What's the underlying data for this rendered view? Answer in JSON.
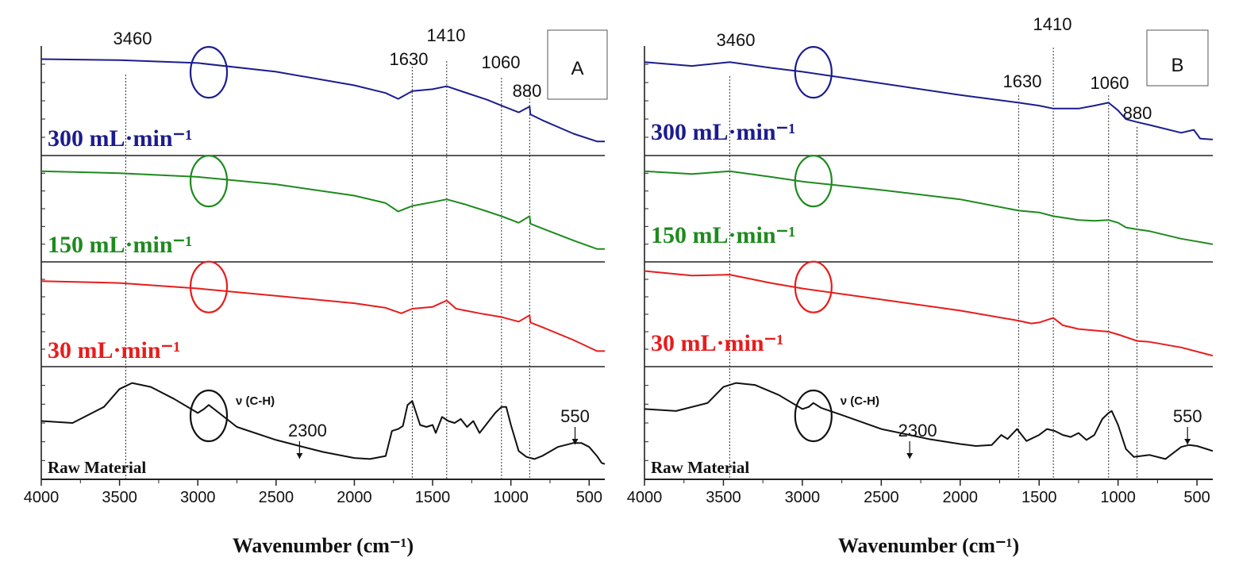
{
  "chart_data": [
    {
      "type": "line",
      "panel_tag": "A",
      "xlabel": "Wavenumber (cm⁻¹)",
      "xlim": [
        4000,
        400
      ],
      "x_reversed": true,
      "xticks": [
        4000,
        3500,
        3000,
        2500,
        2000,
        1500,
        1000,
        500
      ],
      "grid": false,
      "layout": "stacked",
      "annotated_wavenumbers": [
        3460,
        1630,
        1410,
        1060,
        880
      ],
      "circle_center": 2930,
      "vch_label": "ν (C-H)",
      "arrow_annotations": [
        {
          "label": "2300",
          "x": 2350
        },
        {
          "label": "550",
          "x": 590
        }
      ],
      "series": [
        {
          "name": "300 mL·min⁻¹",
          "color": "#1c1c8f",
          "x": [
            4000,
            3500,
            3000,
            2500,
            2000,
            1800,
            1720,
            1630,
            1500,
            1410,
            1300,
            1150,
            1060,
            950,
            880,
            875,
            800,
            600,
            450,
            400
          ],
          "y": [
            0.93,
            0.92,
            0.89,
            0.8,
            0.66,
            0.58,
            0.52,
            0.6,
            0.62,
            0.65,
            0.59,
            0.51,
            0.45,
            0.38,
            0.44,
            0.36,
            0.3,
            0.16,
            0.08,
            0.08
          ]
        },
        {
          "name": "150 mL·min⁻¹",
          "color": "#1e8a1e",
          "x": [
            4000,
            3500,
            3000,
            2500,
            2000,
            1800,
            1720,
            1630,
            1500,
            1410,
            1300,
            1150,
            1060,
            950,
            880,
            875,
            800,
            600,
            450,
            400
          ],
          "y": [
            0.9,
            0.88,
            0.84,
            0.76,
            0.64,
            0.56,
            0.47,
            0.53,
            0.57,
            0.6,
            0.55,
            0.47,
            0.42,
            0.35,
            0.42,
            0.34,
            0.29,
            0.16,
            0.07,
            0.07
          ]
        },
        {
          "name": "30 mL·min⁻¹",
          "color": "#e81c1c",
          "x": [
            4000,
            3500,
            3000,
            2500,
            2000,
            1800,
            1700,
            1630,
            1500,
            1410,
            1350,
            1200,
            1060,
            950,
            880,
            875,
            800,
            600,
            450,
            400
          ],
          "y": [
            0.86,
            0.84,
            0.78,
            0.7,
            0.62,
            0.57,
            0.51,
            0.56,
            0.58,
            0.65,
            0.56,
            0.51,
            0.47,
            0.42,
            0.49,
            0.41,
            0.36,
            0.22,
            0.1,
            0.1
          ]
        },
        {
          "name": "Raw Material",
          "color": "#111111",
          "x": [
            4000,
            3800,
            3600,
            3500,
            3420,
            3300,
            3150,
            3000,
            2960,
            2930,
            2880,
            2750,
            2500,
            2350,
            2200,
            2000,
            1900,
            1800,
            1760,
            1720,
            1690,
            1660,
            1630,
            1580,
            1540,
            1500,
            1480,
            1440,
            1400,
            1360,
            1320,
            1280,
            1240,
            1200,
            1160,
            1100,
            1060,
            1030,
            1000,
            950,
            900,
            850,
            800,
            700,
            600,
            550,
            500,
            450,
            420,
            400
          ],
          "y": [
            0.52,
            0.5,
            0.66,
            0.84,
            0.9,
            0.86,
            0.74,
            0.6,
            0.64,
            0.68,
            0.62,
            0.46,
            0.33,
            0.27,
            0.21,
            0.15,
            0.14,
            0.17,
            0.42,
            0.44,
            0.47,
            0.68,
            0.72,
            0.48,
            0.46,
            0.48,
            0.4,
            0.56,
            0.52,
            0.5,
            0.54,
            0.46,
            0.52,
            0.4,
            0.48,
            0.6,
            0.66,
            0.66,
            0.48,
            0.22,
            0.16,
            0.14,
            0.17,
            0.26,
            0.3,
            0.3,
            0.26,
            0.17,
            0.1,
            0.09
          ]
        }
      ]
    },
    {
      "type": "line",
      "panel_tag": "B",
      "xlabel": "Wavenumber (cm⁻¹)",
      "xlim": [
        4000,
        400
      ],
      "x_reversed": true,
      "xticks": [
        4000,
        3500,
        3000,
        2500,
        2000,
        1500,
        1000,
        500
      ],
      "grid": false,
      "layout": "stacked",
      "annotated_wavenumbers": [
        3460,
        1630,
        1410,
        1060,
        880
      ],
      "circle_center": 2930,
      "vch_label": "ν (C-H)",
      "arrow_annotations": [
        {
          "label": "2300",
          "x": 2320
        },
        {
          "label": "550",
          "x": 560
        }
      ],
      "series": [
        {
          "name": "300 mL·min⁻¹",
          "color": "#1c1c8f",
          "x": [
            4000,
            3700,
            3460,
            3200,
            3000,
            2500,
            2000,
            1630,
            1500,
            1410,
            1250,
            1150,
            1060,
            1000,
            950,
            880,
            800,
            600,
            520,
            480,
            400
          ],
          "y": [
            0.9,
            0.86,
            0.9,
            0.84,
            0.8,
            0.68,
            0.56,
            0.48,
            0.45,
            0.42,
            0.42,
            0.45,
            0.48,
            0.4,
            0.31,
            0.28,
            0.25,
            0.17,
            0.2,
            0.11,
            0.1
          ]
        },
        {
          "name": "150 mL·min⁻¹",
          "color": "#1e8a1e",
          "x": [
            4000,
            3700,
            3460,
            3200,
            3000,
            2500,
            2000,
            1630,
            1500,
            1410,
            1250,
            1150,
            1060,
            1000,
            950,
            880,
            800,
            600,
            400
          ],
          "y": [
            0.9,
            0.87,
            0.9,
            0.84,
            0.79,
            0.7,
            0.6,
            0.48,
            0.46,
            0.42,
            0.38,
            0.37,
            0.38,
            0.35,
            0.3,
            0.28,
            0.26,
            0.18,
            0.12
          ]
        },
        {
          "name": "30 mL·min⁻¹",
          "color": "#e81c1c",
          "x": [
            4000,
            3700,
            3460,
            3200,
            3000,
            2500,
            2000,
            1630,
            1550,
            1500,
            1410,
            1350,
            1250,
            1060,
            1000,
            880,
            800,
            700,
            600,
            400
          ],
          "y": [
            0.97,
            0.92,
            0.93,
            0.84,
            0.78,
            0.66,
            0.54,
            0.43,
            0.4,
            0.41,
            0.46,
            0.38,
            0.34,
            0.31,
            0.28,
            0.21,
            0.2,
            0.17,
            0.14,
            0.05
          ]
        },
        {
          "name": "Raw Material",
          "color": "#111111",
          "x": [
            4000,
            3800,
            3600,
            3500,
            3420,
            3300,
            3150,
            3000,
            2960,
            2930,
            2880,
            2750,
            2500,
            2320,
            2200,
            2000,
            1900,
            1800,
            1740,
            1700,
            1640,
            1580,
            1500,
            1450,
            1400,
            1350,
            1300,
            1250,
            1200,
            1150,
            1100,
            1060,
            1040,
            1000,
            950,
            900,
            800,
            700,
            600,
            550,
            500,
            400
          ],
          "y": [
            0.64,
            0.62,
            0.7,
            0.86,
            0.9,
            0.88,
            0.78,
            0.64,
            0.66,
            0.7,
            0.65,
            0.58,
            0.44,
            0.38,
            0.34,
            0.29,
            0.27,
            0.28,
            0.38,
            0.34,
            0.44,
            0.32,
            0.38,
            0.44,
            0.42,
            0.38,
            0.36,
            0.4,
            0.33,
            0.38,
            0.54,
            0.6,
            0.62,
            0.48,
            0.24,
            0.16,
            0.18,
            0.14,
            0.26,
            0.28,
            0.27,
            0.22
          ]
        }
      ]
    }
  ]
}
